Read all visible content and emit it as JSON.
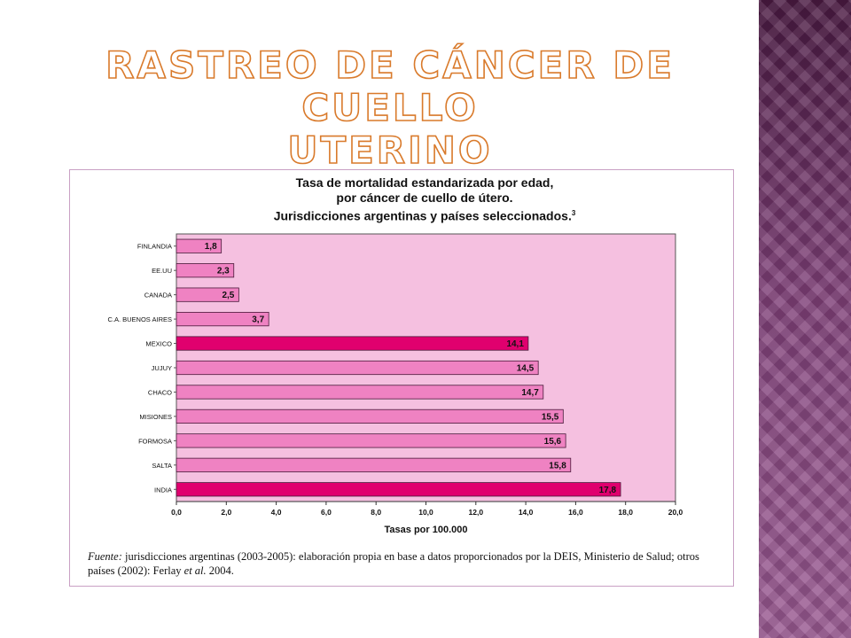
{
  "slide": {
    "title_line1": "RASTREO DE CÁNCER DE CUELLO",
    "title_line2": "UTERINO"
  },
  "colors": {
    "plot_bg": "#f5c0e0",
    "bar": "#ef82c2",
    "bar_highlight": "#e0006e",
    "bar_stroke": "#4a1a3a",
    "title_fill": "#ffffff",
    "title_outline": "#d97a2b"
  },
  "chart_data": {
    "type": "bar",
    "orientation": "horizontal",
    "title_lines": [
      "Tasa de mortalidad estandarizada por edad,",
      "por cáncer de cuello de útero.",
      "Jurisdicciones argentinas y países seleccionados."
    ],
    "title_sup": "3",
    "categories": [
      "FINLANDIA",
      "EE.UU",
      "CANADA",
      "C.A. BUENOS AIRES",
      "MEXICO",
      "JUJUY",
      "CHACO",
      "MISIONES",
      "FORMOSA",
      "SALTA",
      "INDIA"
    ],
    "values": [
      1.8,
      2.3,
      2.5,
      3.7,
      14.1,
      14.5,
      14.7,
      15.5,
      15.6,
      15.8,
      17.8
    ],
    "value_labels": [
      "1,8",
      "2,3",
      "2,5",
      "3,7",
      "14,1",
      "14,5",
      "14,7",
      "15,5",
      "15,6",
      "15,8",
      "17,8"
    ],
    "highlighted": [
      "MEXICO",
      "INDIA"
    ],
    "xlabel": "Tasas por 100.000",
    "xlim": [
      0,
      20
    ],
    "xticks": [
      0,
      2,
      4,
      6,
      8,
      10,
      12,
      14,
      16,
      18,
      20
    ],
    "xtick_labels": [
      "0,0",
      "2,0",
      "4,0",
      "6,0",
      "8,0",
      "10,0",
      "12,0",
      "14,0",
      "16,0",
      "18,0",
      "20,0"
    ],
    "grid": false,
    "legend": "none"
  },
  "source": {
    "label": "Fuente:",
    "text_part1": " jurisdicciones argentinas (2003-2005): elaboración propia en base a datos proporcionados por la DEIS, Ministerio de Salud; otros países (2002): Ferlay ",
    "et_al": "et al.",
    "text_part2": " 2004."
  }
}
